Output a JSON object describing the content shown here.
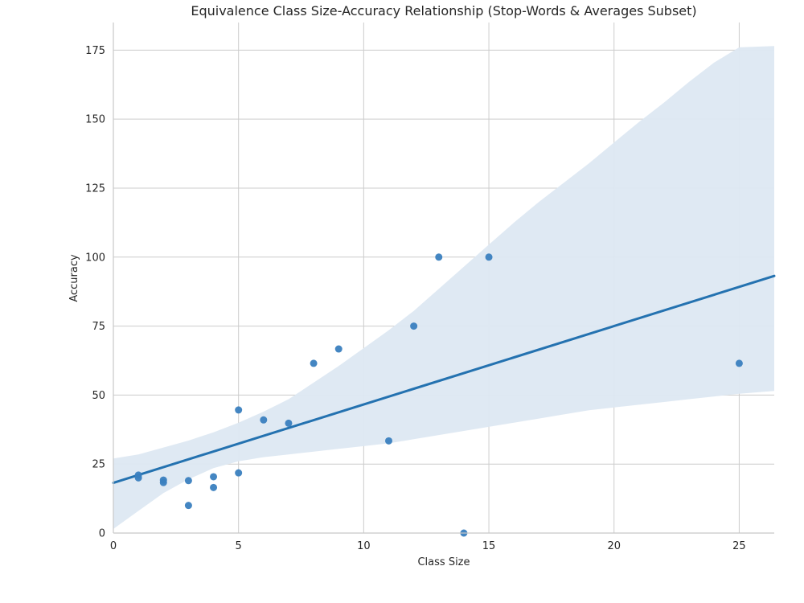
{
  "chart_data": {
    "type": "scatter",
    "title": "Equivalence Class Size-Accuracy Relationship (Stop-Words & Averages Subset)",
    "xlabel": "Class Size",
    "ylabel": "Accuracy",
    "xlim": [
      0,
      26.4
    ],
    "ylim": [
      0,
      185
    ],
    "xticks": [
      0,
      5,
      10,
      15,
      20,
      25
    ],
    "yticks": [
      0,
      25,
      50,
      75,
      100,
      125,
      150,
      175
    ],
    "grid": true,
    "series": [
      {
        "points": [
          {
            "x": 1,
            "y": 21.0
          },
          {
            "x": 1,
            "y": 20.0
          },
          {
            "x": 2,
            "y": 19.2
          },
          {
            "x": 2,
            "y": 18.3
          },
          {
            "x": 3,
            "y": 19.0
          },
          {
            "x": 3,
            "y": 10.0
          },
          {
            "x": 4,
            "y": 20.4
          },
          {
            "x": 4,
            "y": 16.5
          },
          {
            "x": 5,
            "y": 44.6
          },
          {
            "x": 5,
            "y": 21.8
          },
          {
            "x": 6,
            "y": 41.0
          },
          {
            "x": 7,
            "y": 39.8
          },
          {
            "x": 8,
            "y": 61.5
          },
          {
            "x": 9,
            "y": 66.7
          },
          {
            "x": 11,
            "y": 33.4
          },
          {
            "x": 12,
            "y": 75.0
          },
          {
            "x": 13,
            "y": 100.0
          },
          {
            "x": 14,
            "y": 0.0
          },
          {
            "x": 15,
            "y": 100.0
          },
          {
            "x": 25,
            "y": 61.5
          }
        ]
      }
    ],
    "regression": {
      "intercept": 18.2,
      "slope": 2.84,
      "ci_band": [
        {
          "x": 0,
          "low": 1.5,
          "high": 27.0
        },
        {
          "x": 1,
          "low": 8.0,
          "high": 28.5
        },
        {
          "x": 2,
          "low": 14.5,
          "high": 31.0
        },
        {
          "x": 3,
          "low": 19.5,
          "high": 33.5
        },
        {
          "x": 4,
          "low": 23.5,
          "high": 36.5
        },
        {
          "x": 5,
          "low": 26.0,
          "high": 40.0
        },
        {
          "x": 6,
          "low": 27.5,
          "high": 44.0
        },
        {
          "x": 7,
          "low": 28.5,
          "high": 48.5
        },
        {
          "x": 8,
          "low": 29.5,
          "high": 54.5
        },
        {
          "x": 9,
          "low": 30.5,
          "high": 60.5
        },
        {
          "x": 10,
          "low": 31.5,
          "high": 67.0
        },
        {
          "x": 11,
          "low": 32.5,
          "high": 73.5
        },
        {
          "x": 12,
          "low": 34.0,
          "high": 80.5
        },
        {
          "x": 13,
          "low": 35.5,
          "high": 88.5
        },
        {
          "x": 14,
          "low": 37.0,
          "high": 96.5
        },
        {
          "x": 15,
          "low": 38.5,
          "high": 104.5
        },
        {
          "x": 16,
          "low": 40.0,
          "high": 112.5
        },
        {
          "x": 17,
          "low": 41.5,
          "high": 120.0
        },
        {
          "x": 18,
          "low": 43.0,
          "high": 127.0
        },
        {
          "x": 19,
          "low": 44.5,
          "high": 134.0
        },
        {
          "x": 20,
          "low": 45.5,
          "high": 141.5
        },
        {
          "x": 21,
          "low": 46.5,
          "high": 149.0
        },
        {
          "x": 22,
          "low": 47.5,
          "high": 156.0
        },
        {
          "x": 23,
          "low": 48.5,
          "high": 163.5
        },
        {
          "x": 24,
          "low": 49.5,
          "high": 170.5
        },
        {
          "x": 25,
          "low": 50.5,
          "high": 176.0
        },
        {
          "x": 26.4,
          "low": 51.5,
          "high": 176.5
        }
      ]
    },
    "colors": {
      "points": "#3a7fbf",
      "line": "#2472b0",
      "band": "#dde8f2",
      "grid": "#cccccc",
      "axis": "#c8c8c8"
    }
  }
}
